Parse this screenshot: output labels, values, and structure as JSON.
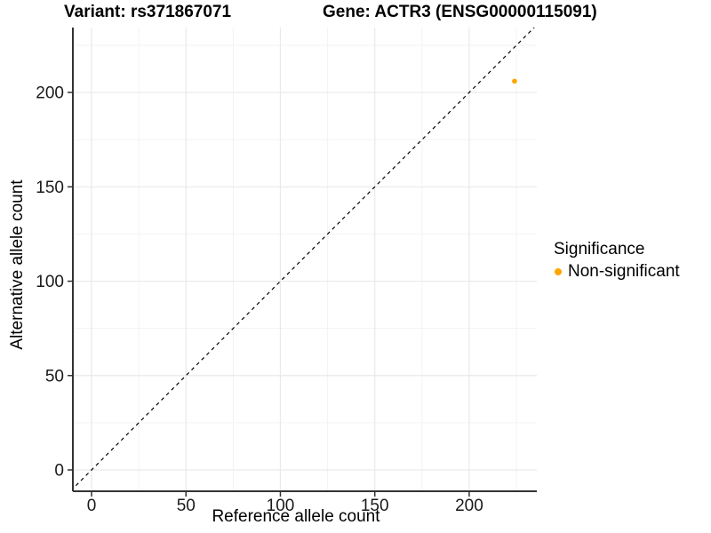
{
  "header": {
    "title_left": "Variant: rs371867071",
    "title_right": "Gene: ACTR3 (ENSG00000115091)"
  },
  "chart_data": {
    "type": "scatter",
    "title": "Variant: rs371867071   Gene: ACTR3 (ENSG00000115091)",
    "xlabel": "Reference allele count",
    "ylabel": "Alternative allele count",
    "xlim": [
      -9.9,
      235.8
    ],
    "ylim": [
      -11.3,
      234.4
    ],
    "x_ticks": [
      0,
      50,
      100,
      150,
      200
    ],
    "y_ticks": [
      0,
      50,
      100,
      150,
      200
    ],
    "x_minor_ticks": [
      25,
      75,
      125,
      175,
      225
    ],
    "y_minor_ticks": [
      25,
      75,
      125,
      175,
      225
    ],
    "grid": true,
    "reference_line": {
      "slope": 1,
      "intercept": 0,
      "style": "dashed",
      "color": "#000000"
    },
    "series": [
      {
        "name": "Non-significant",
        "color": "#FFA500",
        "points": [
          {
            "x": 224,
            "y": 206
          }
        ]
      }
    ],
    "legend": {
      "position": "right",
      "title": "Significance",
      "items": [
        {
          "label": "Non-significant",
          "color": "#FFA500"
        }
      ]
    }
  },
  "colors": {
    "point": "#FFA500",
    "axis_line": "#333333",
    "major_grid": "#e9e9e9",
    "minor_grid": "#f3f3f3",
    "tick_label": "#1a1a1a"
  }
}
